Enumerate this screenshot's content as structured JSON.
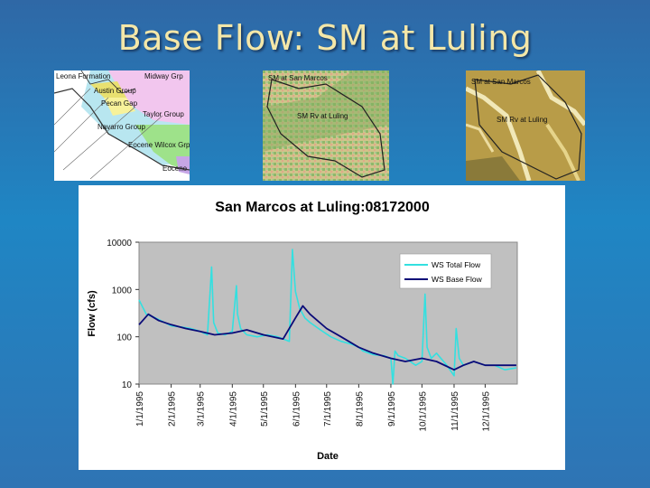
{
  "slide": {
    "title": "Base Flow: SM at Luling"
  },
  "maps": [
    {
      "labels": [
        "Leona Formation",
        "Austin Group",
        "Pecan Gap",
        "Navarro Group",
        "Eocene Wilcox Grp",
        "Taylor Group",
        "Midway Grp",
        "Eocene"
      ]
    },
    {
      "labels": [
        "SM at San Marcos",
        "SM Rv at Luling"
      ]
    },
    {
      "labels": [
        "SM at San Marcos",
        "SM Rv at Luling"
      ]
    }
  ],
  "chart_data": {
    "type": "line",
    "title": "San Marcos at Luling:08172000",
    "xlabel": "Date",
    "ylabel": "Flow (cfs)",
    "yscale": "log",
    "ylim": [
      10,
      10000
    ],
    "yticks": [
      "10",
      "100",
      "1000",
      "10000"
    ],
    "xlim": [
      "1995-01-01",
      "1996-01-01"
    ],
    "xticks": [
      "1/1/1995",
      "2/1/1995",
      "3/1/1995",
      "4/1/1995",
      "5/1/1995",
      "6/1/1995",
      "7/1/1995",
      "8/1/1995",
      "9/1/1995",
      "10/1/1995",
      "11/1/1995",
      "12/1/1995"
    ],
    "grid": false,
    "legend": "top-right",
    "colors": {
      "plot_bg": "#c0c0c0",
      "total": "#33e0e0",
      "base": "#0a0a78"
    },
    "series": [
      {
        "name": "WS Total Flow",
        "x": [
          "1995-01-01",
          "1995-01-08",
          "1995-01-15",
          "1995-01-22",
          "1995-02-01",
          "1995-02-12",
          "1995-02-20",
          "1995-03-01",
          "1995-03-08",
          "1995-03-12",
          "1995-03-14",
          "1995-03-18",
          "1995-03-25",
          "1995-04-01",
          "1995-04-05",
          "1995-04-06",
          "1995-04-09",
          "1995-04-15",
          "1995-04-25",
          "1995-05-05",
          "1995-05-15",
          "1995-05-26",
          "1995-05-29",
          "1995-06-01",
          "1995-06-05",
          "1995-06-10",
          "1995-06-15",
          "1995-06-25",
          "1995-07-05",
          "1995-07-15",
          "1995-07-25",
          "1995-08-01",
          "1995-08-05",
          "1995-08-15",
          "1995-08-25",
          "1995-09-01",
          "1995-09-03",
          "1995-09-05",
          "1995-09-08",
          "1995-09-15",
          "1995-09-25",
          "1995-10-01",
          "1995-10-04",
          "1995-10-06",
          "1995-10-10",
          "1995-10-15",
          "1995-10-25",
          "1995-11-01",
          "1995-11-03",
          "1995-11-06",
          "1995-11-10",
          "1995-11-20",
          "1995-12-01",
          "1995-12-10",
          "1995-12-20",
          "1995-12-31"
        ],
        "values": [
          600,
          300,
          260,
          220,
          170,
          160,
          150,
          130,
          110,
          3000,
          200,
          120,
          110,
          130,
          1200,
          300,
          150,
          110,
          100,
          110,
          100,
          80,
          7000,
          900,
          400,
          250,
          200,
          140,
          100,
          80,
          70,
          60,
          50,
          42,
          40,
          35,
          10,
          50,
          40,
          35,
          25,
          30,
          800,
          60,
          35,
          45,
          25,
          15,
          150,
          35,
          25,
          30,
          25,
          25,
          20,
          22
        ]
      },
      {
        "name": "WS Base Flow",
        "x": [
          "1995-01-01",
          "1995-01-10",
          "1995-01-20",
          "1995-02-01",
          "1995-02-15",
          "1995-03-01",
          "1995-03-15",
          "1995-04-01",
          "1995-04-15",
          "1995-05-01",
          "1995-05-20",
          "1995-06-01",
          "1995-06-08",
          "1995-06-15",
          "1995-07-01",
          "1995-07-15",
          "1995-08-01",
          "1995-08-15",
          "1995-09-01",
          "1995-09-15",
          "1995-10-01",
          "1995-10-15",
          "1995-11-01",
          "1995-11-10",
          "1995-11-20",
          "1995-12-01",
          "1995-12-15",
          "1995-12-31"
        ],
        "values": [
          180,
          300,
          220,
          180,
          150,
          130,
          110,
          120,
          140,
          110,
          90,
          250,
          450,
          300,
          150,
          100,
          60,
          45,
          35,
          30,
          35,
          30,
          20,
          25,
          30,
          25,
          25,
          25
        ]
      }
    ]
  }
}
